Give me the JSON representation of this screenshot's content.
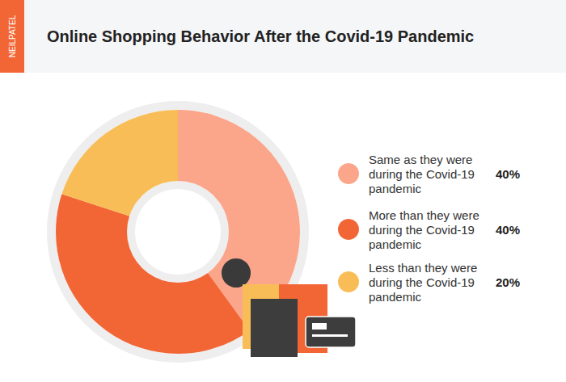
{
  "chart_data": {
    "type": "pie",
    "title": "Online Shopping Behavior After the Covid-19 Pandemic",
    "annotations": [
      "NEILPATEL"
    ],
    "categories": [
      "Same as they were during the Covid-19 pandemic",
      "More than they were during the Covid-19 pandemic",
      "Less than they were during the Covid-19 pandemic"
    ],
    "values": [
      40,
      40,
      20
    ],
    "value_labels": [
      "40%",
      "40%",
      "20%"
    ],
    "colors": [
      "#fba58a",
      "#f26535",
      "#f8bd56"
    ],
    "legend": "right"
  }
}
